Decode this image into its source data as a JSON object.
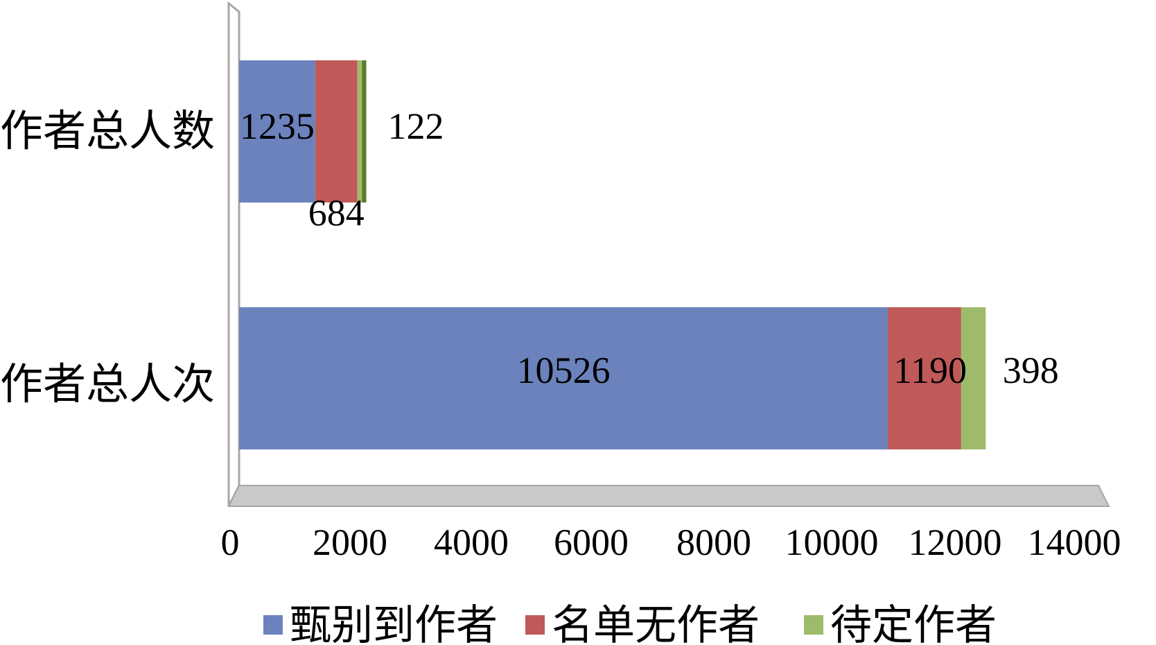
{
  "chart_data": {
    "type": "bar",
    "orientation": "horizontal",
    "stacked": true,
    "categories": [
      "作者总人数",
      "作者总人次"
    ],
    "series": [
      {
        "name": "甄别到作者",
        "color": "#6b82bd",
        "values": [
          1235,
          10526
        ]
      },
      {
        "name": "名单无作者",
        "color": "#bf5a58",
        "values": [
          684,
          1190
        ]
      },
      {
        "name": "待定作者",
        "color": "#9dbb6b",
        "values": [
          122,
          398
        ]
      }
    ],
    "x_ticks": [
      "0",
      "2000",
      "4000",
      "6000",
      "8000",
      "10000",
      "12000",
      "14000"
    ],
    "xlim": [
      0,
      14000
    ],
    "grid": false,
    "legend_position": "bottom",
    "title": "",
    "xlabel": "",
    "ylabel": ""
  }
}
